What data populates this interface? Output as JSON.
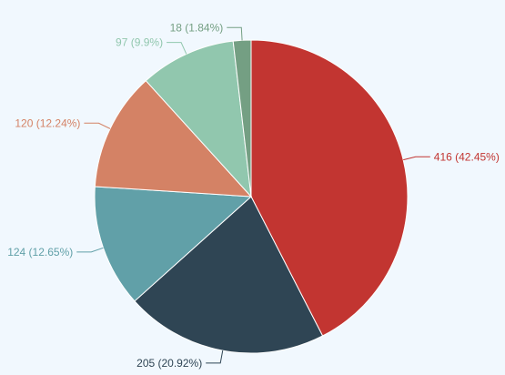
{
  "chart_data": {
    "type": "pie",
    "slices": [
      {
        "value": 416,
        "label": "416 (42.45%)",
        "color": "#c23531"
      },
      {
        "value": 205,
        "label": "205 (20.92%)",
        "color": "#2f4554"
      },
      {
        "value": 124,
        "label": "124 (12.65%)",
        "color": "#61a0a8"
      },
      {
        "value": 120,
        "label": "120 (12.24%)",
        "color": "#d48265"
      },
      {
        "value": 97,
        "label": "97 (9.9%)",
        "color": "#91c7ae"
      },
      {
        "value": 18,
        "label": "18 (1.84%)",
        "color": "#749f83"
      }
    ],
    "start": "top",
    "direction": "clockwise",
    "legend": "none"
  }
}
